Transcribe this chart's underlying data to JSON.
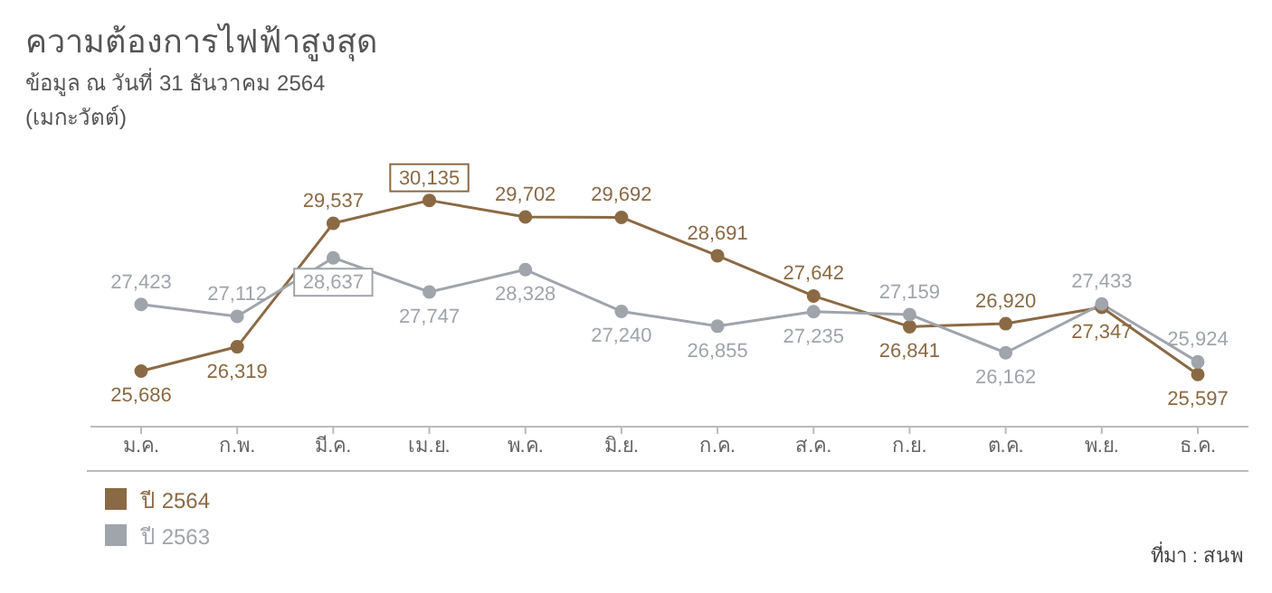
{
  "chart_data": {
    "type": "line",
    "title": "ความต้องการไฟฟ้าสูงสุด",
    "subtitle": "ข้อมูล ณ วันที่ 31 ธันวาคม 2564",
    "annotations": [
      "(เมกะวัตต์)",
      "ที่มา : สนพ"
    ],
    "categories": [
      "ม.ค.",
      "ก.พ.",
      "มี.ค.",
      "เม.ย.",
      "พ.ค.",
      "มิ.ย.",
      "ก.ค.",
      "ส.ค.",
      "ก.ย.",
      "ต.ค.",
      "พ.ย.",
      "ธ.ค."
    ],
    "series": [
      {
        "name": "ปี 2564",
        "color": "#8a6a45",
        "values": [
          25686,
          26319,
          29537,
          30135,
          29702,
          29692,
          28691,
          27642,
          26841,
          26920,
          27347,
          25597
        ],
        "value_labels": [
          "25,686",
          "26,319",
          "29,537",
          "30,135",
          "29,702",
          "29,692",
          "28,691",
          "27,642",
          "26,841",
          "26,920",
          "27,347",
          "25,597"
        ]
      },
      {
        "name": "ปี 2563",
        "color": "#a0a4ab",
        "values": [
          27423,
          27112,
          28637,
          27747,
          28328,
          27240,
          26855,
          27235,
          27159,
          26162,
          27433,
          25924
        ],
        "value_labels": [
          "27,423",
          "27,112",
          "28,637",
          "27,747",
          "28,328",
          "27,240",
          "26,855",
          "27,235",
          "27,159",
          "26,162",
          "27,433",
          "25,924"
        ]
      }
    ],
    "marker": "circle",
    "grid": false,
    "legend": "bottom left"
  }
}
